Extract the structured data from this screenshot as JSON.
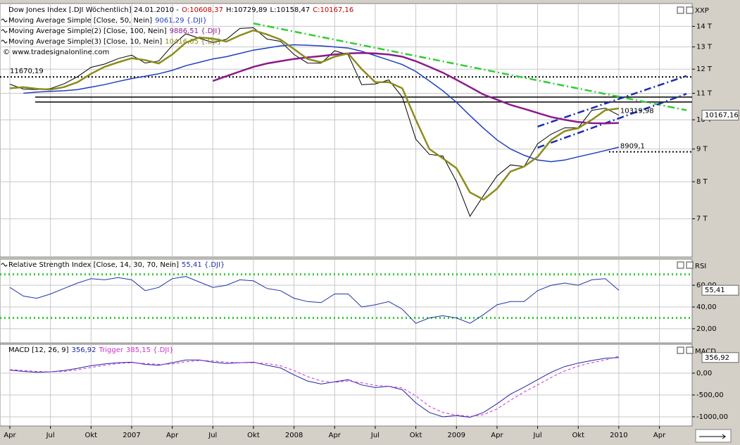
{
  "chart_data": [
    {
      "type": "line",
      "title": "Dow Jones Index [.DJI  Wöchentlich] 24.01.2010 -",
      "ohlc": [
        {
          "label": "O:10608,37",
          "color": "#c00000"
        },
        {
          "label": "H:10729,89",
          "color": "#000000"
        },
        {
          "label": "L:10158,47",
          "color": "#000000"
        },
        {
          "label": "C:10167,16",
          "color": "#c00000"
        }
      ],
      "watermark": "© www.tradesignalonline.com",
      "axis_label": "XXP",
      "log_scale": true,
      "grid": true,
      "x": [
        "2006-04",
        "2006-05",
        "2006-06",
        "2006-07",
        "2006-08",
        "2006-09",
        "2006-10",
        "2006-11",
        "2006-12",
        "2007-01",
        "2007-02",
        "2007-03",
        "2007-04",
        "2007-05",
        "2007-06",
        "2007-07",
        "2007-08",
        "2007-09",
        "2007-10",
        "2007-11",
        "2007-12",
        "2008-01",
        "2008-02",
        "2008-03",
        "2008-04",
        "2008-05",
        "2008-06",
        "2008-07",
        "2008-08",
        "2008-09",
        "2008-10",
        "2008-11",
        "2008-12",
        "2009-01",
        "2009-02",
        "2009-03",
        "2009-04",
        "2009-05",
        "2009-06",
        "2009-07",
        "2009-08",
        "2009-09",
        "2009-10",
        "2009-11",
        "2009-12",
        "2010-01"
      ],
      "series": [
        {
          "name": "Dow Jones Index",
          "color": "#000000",
          "width": 1,
          "last_label": "10167,16",
          "values": [
            11367,
            11168,
            11150,
            11186,
            11381,
            11679,
            12081,
            12222,
            12463,
            12622,
            12269,
            12354,
            13063,
            13628,
            13409,
            13212,
            13358,
            13896,
            13930,
            13372,
            13265,
            12650,
            12266,
            12263,
            12820,
            12638,
            11350,
            11378,
            11544,
            10851,
            9325,
            8829,
            8776,
            8001,
            7063,
            7609,
            8168,
            8500,
            8447,
            9172,
            9496,
            9712,
            9713,
            10345,
            10428,
            10167.16
          ]
        },
        {
          "name": "Moving Average Simple [Close, 50, Nein]",
          "legend_value": "9061,29 {.DJI}",
          "color": "#1f3fbf",
          "width": 1.5,
          "values": [
            null,
            11000,
            11050,
            11080,
            11100,
            11150,
            11250,
            11350,
            11480,
            11600,
            11700,
            11800,
            11950,
            12150,
            12300,
            12450,
            12550,
            12700,
            12850,
            12950,
            13050,
            13100,
            13080,
            13050,
            13000,
            12950,
            12800,
            12600,
            12400,
            12200,
            11900,
            11500,
            11100,
            10650,
            10150,
            9700,
            9300,
            9000,
            8800,
            8650,
            8600,
            8650,
            8750,
            8850,
            8950,
            9061.29
          ]
        },
        {
          "name": "Moving Average Simple(2) [Close, 100, Nein]",
          "legend_value": "9886,51 {.DJI}",
          "color": "#8b1a8b",
          "width": 2.5,
          "values": [
            null,
            null,
            null,
            null,
            null,
            null,
            null,
            null,
            null,
            null,
            null,
            null,
            null,
            null,
            null,
            11500,
            11700,
            11900,
            12100,
            12250,
            12350,
            12450,
            12520,
            12580,
            12650,
            12700,
            12720,
            12700,
            12650,
            12550,
            12350,
            12100,
            11850,
            11550,
            11250,
            10950,
            10750,
            10550,
            10400,
            10250,
            10100,
            10000,
            9920,
            9880,
            9870,
            9886.51
          ]
        },
        {
          "name": "Moving Average Simple(3) [Close, 10, Nein]",
          "legend_value": "10416,05 {.DJI}",
          "color": "#8c8c1a",
          "width": 2.5,
          "values": [
            11200,
            11250,
            11180,
            11150,
            11250,
            11450,
            11800,
            12100,
            12300,
            12480,
            12400,
            12250,
            12650,
            13200,
            13450,
            13400,
            13250,
            13550,
            13800,
            13600,
            13350,
            12900,
            12450,
            12300,
            12550,
            12700,
            12000,
            11450,
            11450,
            11200,
            10000,
            9000,
            8700,
            8400,
            7700,
            7500,
            7800,
            8300,
            8450,
            8750,
            9300,
            9600,
            9700,
            10000,
            10350,
            10416.05
          ]
        }
      ],
      "ylim": [
        6100,
        15200
      ],
      "yticks": [
        {
          "value": 7000,
          "label": "7 T"
        },
        {
          "value": 8000,
          "label": "8 T"
        },
        {
          "value": 9000,
          "label": "9 T"
        },
        {
          "value": 10000,
          "label": "10 T"
        },
        {
          "value": 11000,
          "label": "11 T"
        },
        {
          "value": 12000,
          "label": "12 T"
        },
        {
          "value": 13000,
          "label": "13 T"
        },
        {
          "value": 14000,
          "label": "14 T"
        }
      ],
      "levels": [
        {
          "value": 11670.19,
          "label": "11670,19",
          "x": "2006-04"
        },
        {
          "value": 8909.1,
          "label": "8909,1",
          "x": "2010-01"
        }
      ],
      "hlines": [
        10850,
        10660
      ],
      "annotations": [
        {
          "value": 10319.98,
          "label": "10319,98",
          "x": "2010-01"
        }
      ],
      "trendlines": [
        {
          "x": [
            "2007-10",
            "2010-06"
          ],
          "y": [
            14150,
            10350
          ],
          "color": "#33cc33"
        },
        {
          "x": [
            "2009-07",
            "2010-06"
          ],
          "y": [
            9757,
            11712
          ],
          "color": "#1a2fb0"
        },
        {
          "x": [
            "2009-07",
            "2010-06"
          ],
          "y": [
            9045,
            10977
          ],
          "color": "#1a2fb0"
        }
      ]
    },
    {
      "type": "line",
      "axis_label": "RSI",
      "grid": true,
      "x": [
        "2006-04",
        "2006-05",
        "2006-06",
        "2006-07",
        "2006-08",
        "2006-09",
        "2006-10",
        "2006-11",
        "2006-12",
        "2007-01",
        "2007-02",
        "2007-03",
        "2007-04",
        "2007-05",
        "2007-06",
        "2007-07",
        "2007-08",
        "2007-09",
        "2007-10",
        "2007-11",
        "2007-12",
        "2008-01",
        "2008-02",
        "2008-03",
        "2008-04",
        "2008-05",
        "2008-06",
        "2008-07",
        "2008-08",
        "2008-09",
        "2008-10",
        "2008-11",
        "2008-12",
        "2009-01",
        "2009-02",
        "2009-03",
        "2009-04",
        "2009-05",
        "2009-06",
        "2009-07",
        "2009-08",
        "2009-09",
        "2009-10",
        "2009-11",
        "2009-12",
        "2010-01"
      ],
      "series": [
        {
          "name": "Relative Strength Index [Close, 14, 30, 70, Nein]",
          "legend_value": "55,41 {.DJI}",
          "last_label": "55,41",
          "color": "#2233aa",
          "width": 1,
          "values": [
            58,
            50,
            48,
            52,
            57,
            62,
            66,
            65,
            67,
            65,
            55,
            58,
            66,
            68,
            63,
            58,
            60,
            65,
            64,
            57,
            55,
            48,
            45,
            44,
            52,
            52,
            40,
            42,
            45,
            38,
            25,
            30,
            32,
            30,
            25,
            33,
            42,
            45,
            45,
            55,
            60,
            62,
            60,
            65,
            66,
            55.41
          ]
        }
      ],
      "ylim": [
        7,
        84
      ],
      "yticks": [
        {
          "value": 20,
          "label": "20,00"
        },
        {
          "value": 40,
          "label": "40,00"
        },
        {
          "value": 60,
          "label": "60,00"
        }
      ],
      "levels": [
        {
          "value": 30
        },
        {
          "value": 70
        }
      ]
    },
    {
      "type": "line",
      "axis_label": "MACD",
      "grid": true,
      "x": [
        "2006-04",
        "2006-05",
        "2006-06",
        "2006-07",
        "2006-08",
        "2006-09",
        "2006-10",
        "2006-11",
        "2006-12",
        "2007-01",
        "2007-02",
        "2007-03",
        "2007-04",
        "2007-05",
        "2007-06",
        "2007-07",
        "2007-08",
        "2007-09",
        "2007-10",
        "2007-11",
        "2007-12",
        "2008-01",
        "2008-02",
        "2008-03",
        "2008-04",
        "2008-05",
        "2008-06",
        "2008-07",
        "2008-08",
        "2008-09",
        "2008-10",
        "2008-11",
        "2008-12",
        "2009-01",
        "2009-02",
        "2009-03",
        "2009-04",
        "2009-05",
        "2009-06",
        "2009-07",
        "2009-08",
        "2009-09",
        "2009-10",
        "2009-11",
        "2009-12",
        "2010-01"
      ],
      "series": [
        {
          "name": "MACD [12, 26, 9]",
          "legend_value": "356,92",
          "last_label": "356,92",
          "color": "#2222aa",
          "width": 1,
          "values": [
            70,
            40,
            20,
            30,
            60,
            110,
            170,
            210,
            240,
            250,
            200,
            180,
            240,
            300,
            300,
            250,
            220,
            240,
            250,
            180,
            120,
            -40,
            -180,
            -250,
            -200,
            -150,
            -270,
            -330,
            -300,
            -380,
            -680,
            -900,
            -1000,
            -970,
            -1010,
            -900,
            -700,
            -480,
            -320,
            -150,
            20,
            150,
            230,
            290,
            340,
            356.92
          ]
        },
        {
          "name": "Trigger",
          "legend_value": "385,15 {.DJI}",
          "color": "#cc33cc",
          "width": 1,
          "dashed": true,
          "values": [
            80,
            60,
            40,
            30,
            40,
            80,
            130,
            180,
            220,
            240,
            220,
            200,
            210,
            260,
            290,
            280,
            250,
            240,
            240,
            220,
            170,
            60,
            -80,
            -180,
            -210,
            -180,
            -220,
            -280,
            -300,
            -340,
            -520,
            -760,
            -900,
            -960,
            -990,
            -950,
            -820,
            -620,
            -430,
            -270,
            -100,
            50,
            160,
            240,
            300,
            385.15
          ]
        }
      ],
      "ylim": [
        -1210,
        660
      ],
      "yticks": [
        {
          "value": -1000,
          "label": "-1000,00"
        },
        {
          "value": -500,
          "label": "-500,00"
        },
        {
          "value": 0,
          "label": "0,00"
        }
      ],
      "xticks": [
        {
          "value": "2006-04",
          "label": "Apr"
        },
        {
          "value": "2006-07",
          "label": "Jul"
        },
        {
          "value": "2006-10",
          "label": "Okt"
        },
        {
          "value": "2007-01",
          "label": "2007"
        },
        {
          "value": "2007-04",
          "label": "Apr"
        },
        {
          "value": "2007-07",
          "label": "Jul"
        },
        {
          "value": "2007-10",
          "label": "Okt"
        },
        {
          "value": "2008-01",
          "label": "2008"
        },
        {
          "value": "2008-04",
          "label": "Apr"
        },
        {
          "value": "2008-07",
          "label": "Jul"
        },
        {
          "value": "2008-10",
          "label": "Okt"
        },
        {
          "value": "2009-01",
          "label": "2009"
        },
        {
          "value": "2009-04",
          "label": "Apr"
        },
        {
          "value": "2009-07",
          "label": "Jul"
        },
        {
          "value": "2009-10",
          "label": "Okt"
        },
        {
          "value": "2010-01",
          "label": "2010"
        },
        {
          "value": "2010-04",
          "label": "Apr"
        }
      ]
    }
  ]
}
